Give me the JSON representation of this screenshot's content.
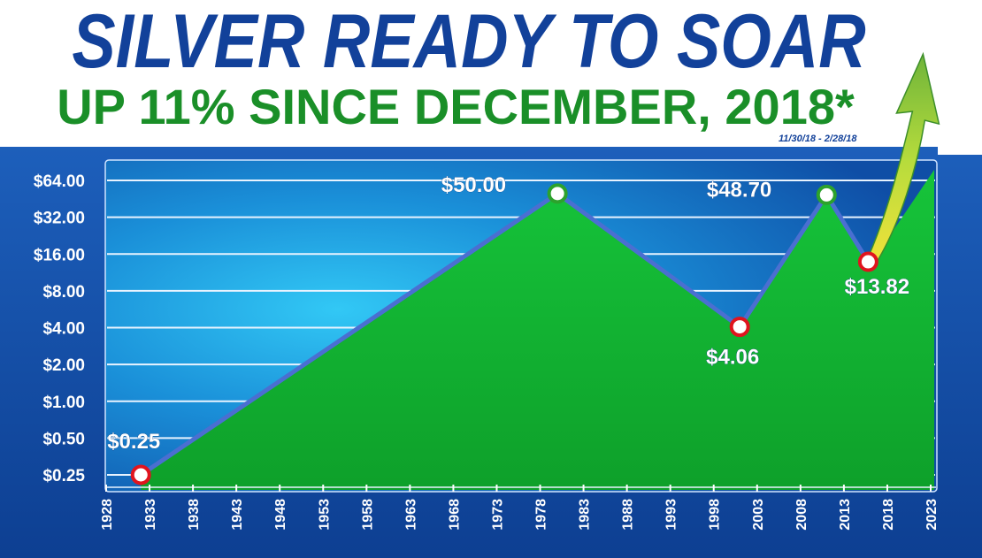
{
  "header": {
    "title": "SILVER READY TO SOAR",
    "subtitle": "UP 11% SINCE DECEMBER, 2018*",
    "footnote": "11/30/18 - 2/28/18"
  },
  "colors": {
    "title": "#12419a",
    "subtitle": "#1a8f28",
    "frame": "#1350a8",
    "area": "#12b832",
    "line": "#4a6fd1",
    "peak_marker": "#2ca22c",
    "trough_marker": "#e0141e",
    "arrow": "#8cc83c"
  },
  "chart_data": {
    "type": "area",
    "title": "SILVER READY TO SOAR",
    "subtitle": "UP 11% SINCE DECEMBER, 2018*",
    "xlabel": "",
    "ylabel": "",
    "y_scale": "log2",
    "ylim": [
      0.25,
      64
    ],
    "xlim": [
      1928,
      2023
    ],
    "grid": true,
    "y_ticks": [
      0.25,
      0.5,
      1,
      2,
      4,
      8,
      16,
      32,
      64
    ],
    "y_tick_labels": [
      "$0.25",
      "$0.50",
      "$1.00",
      "$2.00",
      "$4.00",
      "$8.00",
      "$16.00",
      "$32.00",
      "$64.00"
    ],
    "x_ticks": [
      1928,
      1933,
      1938,
      1943,
      1948,
      1953,
      1958,
      1963,
      1968,
      1973,
      1978,
      1983,
      1988,
      1993,
      1998,
      2003,
      2008,
      2013,
      2018,
      2023
    ],
    "x_tick_labels": [
      "1928",
      "1933",
      "1938",
      "1943",
      "1948",
      "1953",
      "1958",
      "1963",
      "1968",
      "1973",
      "1978",
      "1983",
      "1988",
      "1993",
      "1998",
      "2003",
      "2008",
      "2013",
      "2018",
      "2023"
    ],
    "series": [
      {
        "x": [
          1932,
          1980,
          2001,
          2011,
          2015.8
        ],
        "values": [
          0.25,
          50.0,
          4.06,
          48.7,
          13.82
        ]
      }
    ],
    "points": [
      {
        "x": 1932,
        "y": 0.25,
        "label": "$0.25",
        "kind": "trough"
      },
      {
        "x": 1980,
        "y": 50.0,
        "label": "$50.00",
        "kind": "peak"
      },
      {
        "x": 2001,
        "y": 4.06,
        "label": "$4.06",
        "kind": "trough"
      },
      {
        "x": 2011,
        "y": 48.7,
        "label": "$48.70",
        "kind": "peak"
      },
      {
        "x": 2015.8,
        "y": 13.82,
        "label": "$13.82",
        "kind": "trough"
      }
    ]
  }
}
